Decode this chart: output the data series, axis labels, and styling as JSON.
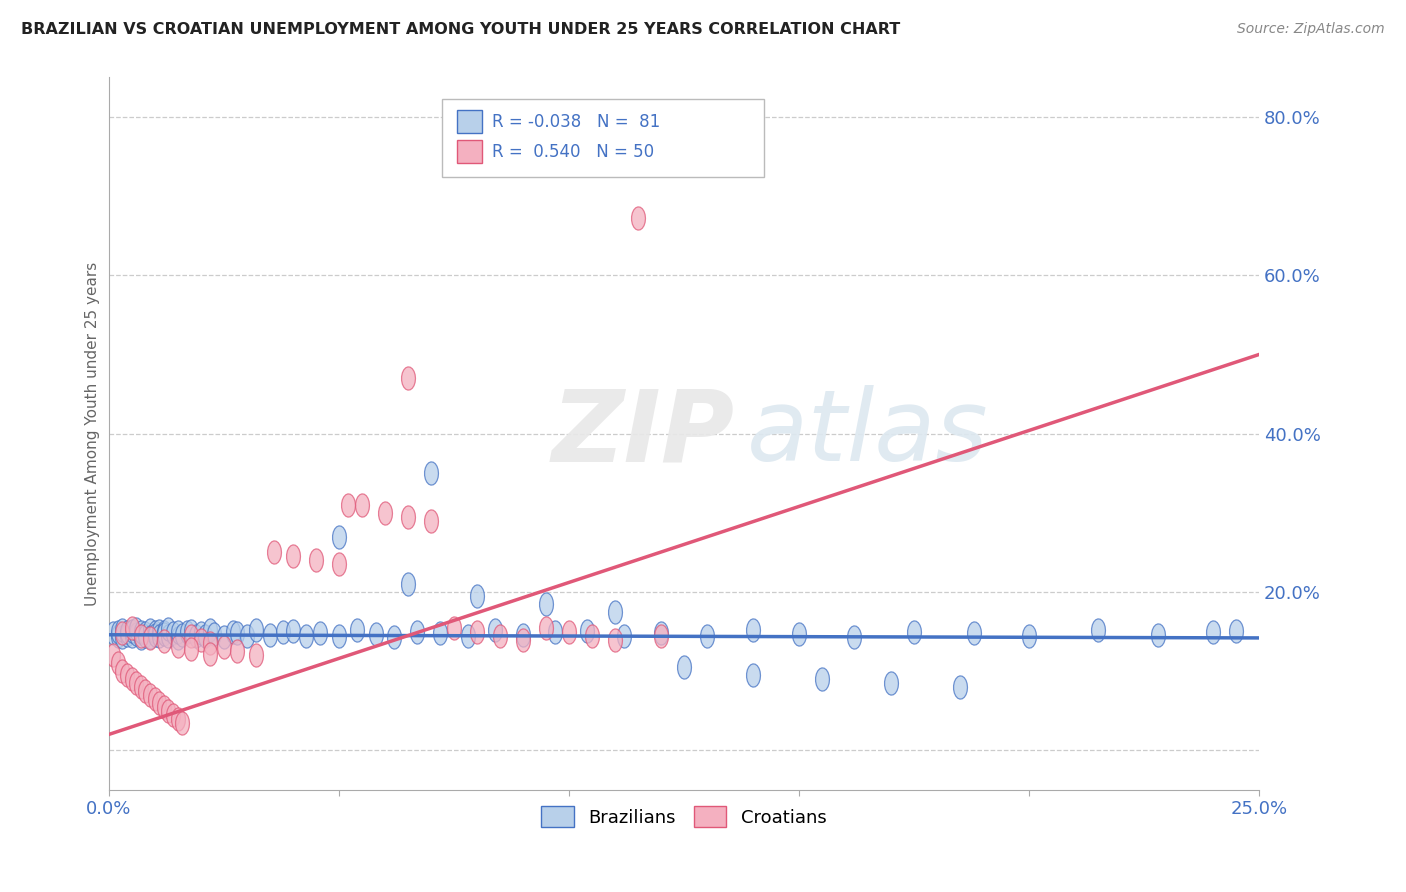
{
  "title": "BRAZILIAN VS CROATIAN UNEMPLOYMENT AMONG YOUTH UNDER 25 YEARS CORRELATION CHART",
  "source": "Source: ZipAtlas.com",
  "ylabel": "Unemployment Among Youth under 25 years",
  "xlim": [
    0.0,
    0.25
  ],
  "ylim": [
    -0.05,
    0.85
  ],
  "brazil_R": -0.038,
  "brazil_N": 81,
  "croatia_R": 0.54,
  "croatia_N": 50,
  "brazil_color": "#b8d0ea",
  "croatia_color": "#f4b0c0",
  "brazil_line_color": "#4472c4",
  "croatia_line_color": "#e05878",
  "background_color": "#ffffff",
  "brazil_x": [
    0.001,
    0.002,
    0.002,
    0.003,
    0.003,
    0.004,
    0.004,
    0.005,
    0.005,
    0.006,
    0.006,
    0.007,
    0.007,
    0.008,
    0.008,
    0.009,
    0.009,
    0.01,
    0.01,
    0.011,
    0.011,
    0.012,
    0.012,
    0.013,
    0.013,
    0.014,
    0.015,
    0.015,
    0.016,
    0.017,
    0.018,
    0.019,
    0.02,
    0.021,
    0.022,
    0.023,
    0.025,
    0.027,
    0.028,
    0.03,
    0.032,
    0.035,
    0.038,
    0.04,
    0.043,
    0.046,
    0.05,
    0.054,
    0.058,
    0.062,
    0.067,
    0.072,
    0.078,
    0.084,
    0.09,
    0.097,
    0.104,
    0.112,
    0.12,
    0.13,
    0.14,
    0.15,
    0.162,
    0.175,
    0.188,
    0.2,
    0.215,
    0.228,
    0.24,
    0.245,
    0.05,
    0.065,
    0.08,
    0.095,
    0.11,
    0.125,
    0.14,
    0.155,
    0.17,
    0.185,
    0.07
  ],
  "brazil_y": [
    0.148,
    0.145,
    0.15,
    0.143,
    0.152,
    0.146,
    0.149,
    0.144,
    0.151,
    0.147,
    0.153,
    0.142,
    0.15,
    0.148,
    0.145,
    0.152,
    0.143,
    0.149,
    0.146,
    0.151,
    0.144,
    0.15,
    0.147,
    0.145,
    0.153,
    0.148,
    0.142,
    0.15,
    0.146,
    0.149,
    0.151,
    0.144,
    0.148,
    0.145,
    0.152,
    0.147,
    0.143,
    0.15,
    0.148,
    0.145,
    0.152,
    0.146,
    0.149,
    0.151,
    0.144,
    0.148,
    0.145,
    0.152,
    0.147,
    0.143,
    0.15,
    0.148,
    0.145,
    0.152,
    0.146,
    0.149,
    0.151,
    0.144,
    0.148,
    0.145,
    0.152,
    0.147,
    0.143,
    0.15,
    0.148,
    0.145,
    0.152,
    0.146,
    0.149,
    0.151,
    0.27,
    0.21,
    0.195,
    0.185,
    0.175,
    0.105,
    0.095,
    0.09,
    0.085,
    0.08,
    0.35
  ],
  "croatia_x": [
    0.001,
    0.002,
    0.003,
    0.004,
    0.005,
    0.006,
    0.007,
    0.008,
    0.009,
    0.01,
    0.011,
    0.012,
    0.013,
    0.014,
    0.015,
    0.016,
    0.018,
    0.02,
    0.022,
    0.025,
    0.028,
    0.032,
    0.036,
    0.04,
    0.045,
    0.05,
    0.055,
    0.06,
    0.065,
    0.07,
    0.075,
    0.08,
    0.085,
    0.09,
    0.095,
    0.1,
    0.105,
    0.11,
    0.115,
    0.12,
    0.003,
    0.005,
    0.007,
    0.009,
    0.012,
    0.015,
    0.018,
    0.022,
    0.052,
    0.065
  ],
  "croatia_y": [
    0.12,
    0.11,
    0.1,
    0.095,
    0.09,
    0.085,
    0.08,
    0.075,
    0.07,
    0.065,
    0.06,
    0.055,
    0.05,
    0.045,
    0.04,
    0.035,
    0.145,
    0.14,
    0.135,
    0.13,
    0.125,
    0.12,
    0.25,
    0.245,
    0.24,
    0.235,
    0.31,
    0.3,
    0.295,
    0.29,
    0.155,
    0.15,
    0.145,
    0.14,
    0.155,
    0.15,
    0.145,
    0.14,
    0.672,
    0.145,
    0.148,
    0.155,
    0.145,
    0.142,
    0.138,
    0.132,
    0.128,
    0.122,
    0.31,
    0.47
  ]
}
